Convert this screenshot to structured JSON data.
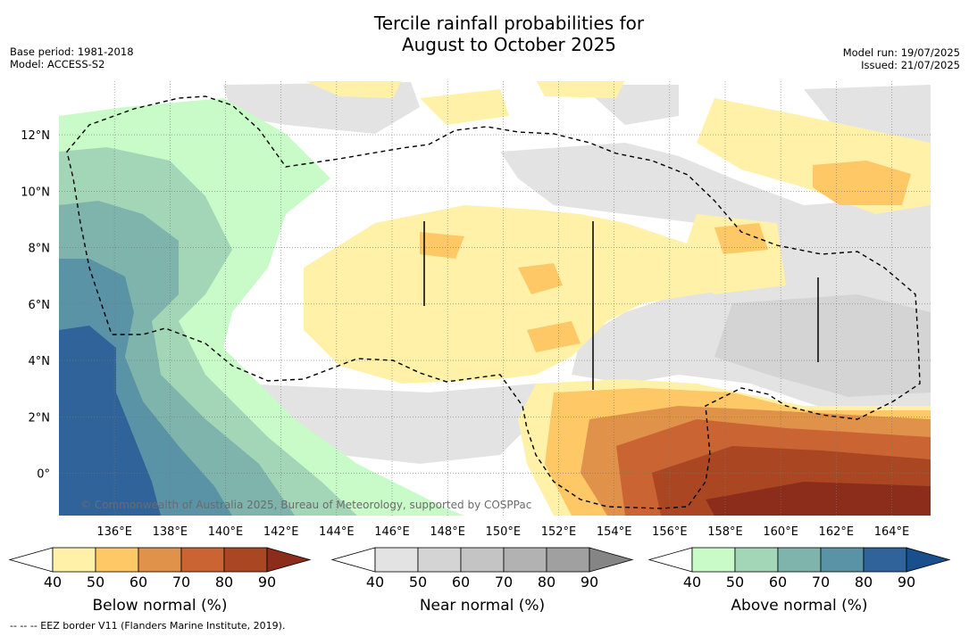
{
  "title_line1": "Tercile rainfall probabilities for",
  "title_line2": "August to October 2025",
  "base_period": "Base period: 1981-2018",
  "model": "Model: ACCESS-S2",
  "model_run": "Model run: 19/07/2025",
  "issued": "Issued: 21/07/2025",
  "map": {
    "lon_range": [
      134.0,
      165.4
    ],
    "lat_range": [
      -1.5,
      13.9
    ],
    "lon_ticks": [
      {
        "v": 136,
        "label": "136°E"
      },
      {
        "v": 138,
        "label": "138°E"
      },
      {
        "v": 140,
        "label": "140°E"
      },
      {
        "v": 142,
        "label": "142°E"
      },
      {
        "v": 144,
        "label": "144°E"
      },
      {
        "v": 146,
        "label": "146°E"
      },
      {
        "v": 148,
        "label": "148°E"
      },
      {
        "v": 150,
        "label": "150°E"
      },
      {
        "v": 152,
        "label": "152°E"
      },
      {
        "v": 154,
        "label": "154°E"
      },
      {
        "v": 156,
        "label": "156°E"
      },
      {
        "v": 158,
        "label": "158°E"
      },
      {
        "v": 160,
        "label": "160°E"
      },
      {
        "v": 162,
        "label": "162°E"
      },
      {
        "v": 164,
        "label": "164°E"
      }
    ],
    "lat_ticks": [
      {
        "v": 0,
        "label": "0°"
      },
      {
        "v": 2,
        "label": "2°N"
      },
      {
        "v": 4,
        "label": "4°N"
      },
      {
        "v": 6,
        "label": "6°N"
      },
      {
        "v": 8,
        "label": "8°N"
      },
      {
        "v": 10,
        "label": "10°N"
      },
      {
        "v": 12,
        "label": "12°N"
      }
    ],
    "copyright": "© Commonwealth of Australia 2025, Bureau of Meteorology, supported by COSPPac",
    "grid": "dotted"
  },
  "colorbars": [
    {
      "title": "Below normal (%)",
      "levels": [
        "40",
        "50",
        "60",
        "70",
        "80",
        "90"
      ],
      "colors": [
        "#fff1a8",
        "#fdc865",
        "#e0914a",
        "#cb6433",
        "#ab4623",
        "#8c2d1c"
      ]
    },
    {
      "title": "Near normal (%)",
      "levels": [
        "40",
        "50",
        "60",
        "70",
        "80",
        "90"
      ],
      "colors": [
        "#e3e3e3",
        "#d4d4d4",
        "#c4c4c4",
        "#b2b2b2",
        "#a0a0a0",
        "#858585"
      ]
    },
    {
      "title": "Above normal (%)",
      "levels": [
        "40",
        "50",
        "60",
        "70",
        "80",
        "90"
      ],
      "colors": [
        "#c8fbc8",
        "#a2d6b7",
        "#7fb4ad",
        "#5b93a6",
        "#306399",
        "#1a4f8e"
      ]
    }
  ],
  "footnote": "--  --  -- EEZ border V11 (Flanders Marine Institute, 2019)."
}
